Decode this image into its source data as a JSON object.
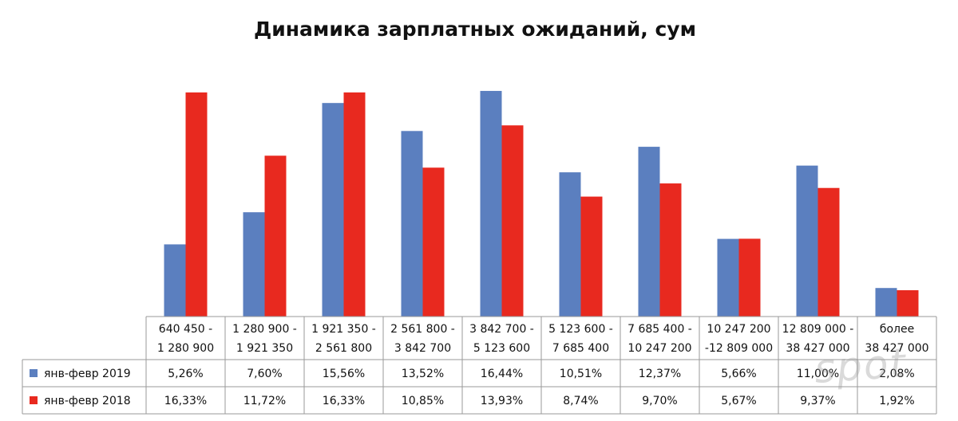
{
  "chart_data": {
    "type": "bar",
    "title": "Динамика зарплатных ожиданий, сум",
    "categories": [
      [
        "640 450 -",
        "1 280 900"
      ],
      [
        "1 280 900 -",
        "1 921 350"
      ],
      [
        "1 921 350 -",
        "2 561 800"
      ],
      [
        "2 561 800 -",
        "3 842 700"
      ],
      [
        "3 842 700 -",
        "5 123 600"
      ],
      [
        "5 123 600 -",
        "7 685 400"
      ],
      [
        "7 685 400 -",
        "10 247 200"
      ],
      [
        "10 247 200",
        "-12 809 000"
      ],
      [
        "12 809 000 -",
        "38 427 000"
      ],
      [
        "более",
        "38 427 000"
      ]
    ],
    "series": [
      {
        "name": "янв-февр  2019",
        "color": "#5b7fbf",
        "values": [
          5.26,
          7.6,
          15.56,
          13.52,
          16.44,
          10.51,
          12.37,
          5.66,
          11.0,
          2.08
        ],
        "labels": [
          "5,26%",
          "7,60%",
          "15,56%",
          "13,52%",
          "16,44%",
          "10,51%",
          "12,37%",
          "5,66%",
          "11,00%",
          "2,08%"
        ]
      },
      {
        "name": "янв-февр  2018",
        "color": "#e8291f",
        "values": [
          16.33,
          11.72,
          16.33,
          10.85,
          13.93,
          8.74,
          9.7,
          5.67,
          9.37,
          1.92
        ],
        "labels": [
          "16,33%",
          "11,72%",
          "16,33%",
          "10,85%",
          "13,93%",
          "8,74%",
          "9,70%",
          "5,67%",
          "9,37%",
          "1,92%"
        ]
      }
    ],
    "ylim": [
      0,
      16.5
    ],
    "legend": "data-table-left",
    "grid": false
  },
  "watermark": "spot"
}
